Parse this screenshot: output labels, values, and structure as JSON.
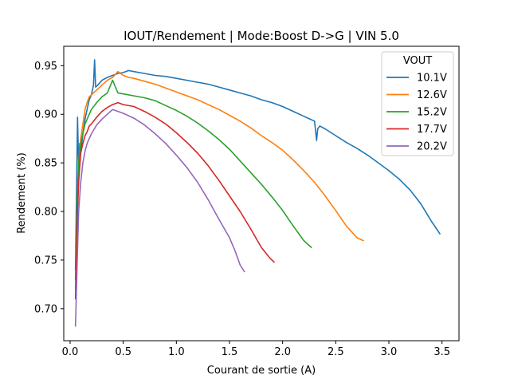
{
  "chart_data": {
    "type": "line",
    "title": "IOUT/Rendement | Mode:Boost D->G | VIN 5.0",
    "xlabel": "Courant de sortie (A)",
    "ylabel": "Rendement (%)",
    "xlim": [
      -0.06,
      3.66
    ],
    "ylim": [
      0.667,
      0.97
    ],
    "xticks": [
      0.0,
      0.5,
      1.0,
      1.5,
      2.0,
      2.5,
      3.0,
      3.5
    ],
    "xtick_labels": [
      "0.0",
      "0.5",
      "1.0",
      "1.5",
      "2.0",
      "2.5",
      "3.0",
      "3.5"
    ],
    "yticks": [
      0.7,
      0.75,
      0.8,
      0.85,
      0.9,
      0.95
    ],
    "ytick_labels": [
      "0.70",
      "0.75",
      "0.80",
      "0.85",
      "0.90",
      "0.95"
    ],
    "grid": false,
    "legend": {
      "title": "VOUT",
      "position": "top-right"
    },
    "series": [
      {
        "name": "10.1V",
        "color": "#1f77b4",
        "x": [
          0.05,
          0.07,
          0.08,
          0.09,
          0.1,
          0.12,
          0.14,
          0.16,
          0.18,
          0.2,
          0.22,
          0.23,
          0.24,
          0.26,
          0.3,
          0.35,
          0.4,
          0.45,
          0.5,
          0.55,
          0.6,
          0.7,
          0.8,
          0.9,
          1.0,
          1.1,
          1.2,
          1.3,
          1.4,
          1.5,
          1.6,
          1.7,
          1.8,
          1.9,
          2.0,
          2.1,
          2.2,
          2.3,
          2.32,
          2.33,
          2.35,
          2.4,
          2.5,
          2.6,
          2.7,
          2.8,
          2.9,
          3.0,
          3.1,
          3.2,
          3.3,
          3.4,
          3.48
        ],
        "y": [
          0.74,
          0.897,
          0.845,
          0.87,
          0.86,
          0.88,
          0.895,
          0.905,
          0.915,
          0.92,
          0.93,
          0.956,
          0.928,
          0.93,
          0.935,
          0.938,
          0.94,
          0.942,
          0.943,
          0.945,
          0.944,
          0.942,
          0.94,
          0.939,
          0.937,
          0.935,
          0.933,
          0.931,
          0.928,
          0.925,
          0.922,
          0.919,
          0.915,
          0.912,
          0.908,
          0.903,
          0.898,
          0.893,
          0.873,
          0.885,
          0.888,
          0.885,
          0.878,
          0.871,
          0.865,
          0.858,
          0.85,
          0.842,
          0.833,
          0.822,
          0.808,
          0.79,
          0.777
        ]
      },
      {
        "name": "12.6V",
        "color": "#ff7f0e",
        "x": [
          0.05,
          0.07,
          0.08,
          0.1,
          0.12,
          0.14,
          0.16,
          0.18,
          0.2,
          0.25,
          0.3,
          0.35,
          0.4,
          0.45,
          0.5,
          0.55,
          0.6,
          0.7,
          0.8,
          0.9,
          1.0,
          1.1,
          1.2,
          1.3,
          1.4,
          1.5,
          1.6,
          1.7,
          1.8,
          1.9,
          2.0,
          2.1,
          2.2,
          2.3,
          2.4,
          2.5,
          2.6,
          2.7,
          2.76
        ],
        "y": [
          0.72,
          0.82,
          0.85,
          0.875,
          0.89,
          0.905,
          0.912,
          0.918,
          0.92,
          0.925,
          0.93,
          0.935,
          0.938,
          0.944,
          0.94,
          0.938,
          0.937,
          0.934,
          0.931,
          0.927,
          0.923,
          0.919,
          0.915,
          0.91,
          0.905,
          0.899,
          0.893,
          0.886,
          0.878,
          0.871,
          0.863,
          0.853,
          0.842,
          0.83,
          0.816,
          0.801,
          0.785,
          0.773,
          0.77
        ]
      },
      {
        "name": "15.2V",
        "color": "#2ca02c",
        "x": [
          0.05,
          0.07,
          0.08,
          0.1,
          0.12,
          0.14,
          0.16,
          0.18,
          0.2,
          0.25,
          0.3,
          0.35,
          0.4,
          0.45,
          0.5,
          0.6,
          0.7,
          0.8,
          0.9,
          1.0,
          1.1,
          1.2,
          1.3,
          1.4,
          1.5,
          1.6,
          1.7,
          1.8,
          1.9,
          2.0,
          2.1,
          2.2,
          2.27
        ],
        "y": [
          0.73,
          0.82,
          0.85,
          0.87,
          0.88,
          0.89,
          0.895,
          0.9,
          0.905,
          0.912,
          0.918,
          0.922,
          0.935,
          0.922,
          0.921,
          0.919,
          0.917,
          0.914,
          0.909,
          0.904,
          0.898,
          0.891,
          0.883,
          0.874,
          0.864,
          0.852,
          0.84,
          0.828,
          0.815,
          0.801,
          0.785,
          0.77,
          0.763
        ]
      },
      {
        "name": "17.7V",
        "color": "#d62728",
        "x": [
          0.05,
          0.07,
          0.08,
          0.1,
          0.12,
          0.14,
          0.16,
          0.18,
          0.2,
          0.25,
          0.3,
          0.35,
          0.4,
          0.45,
          0.5,
          0.6,
          0.7,
          0.8,
          0.9,
          1.0,
          1.1,
          1.2,
          1.3,
          1.4,
          1.5,
          1.6,
          1.7,
          1.8,
          1.88,
          1.92
        ],
        "y": [
          0.71,
          0.8,
          0.83,
          0.86,
          0.87,
          0.878,
          0.882,
          0.888,
          0.89,
          0.897,
          0.903,
          0.907,
          0.91,
          0.912,
          0.91,
          0.908,
          0.903,
          0.897,
          0.89,
          0.881,
          0.871,
          0.86,
          0.847,
          0.832,
          0.816,
          0.8,
          0.782,
          0.763,
          0.752,
          0.748
        ]
      },
      {
        "name": "20.2V",
        "color": "#9467bd",
        "x": [
          0.05,
          0.07,
          0.08,
          0.1,
          0.12,
          0.14,
          0.16,
          0.18,
          0.2,
          0.25,
          0.3,
          0.35,
          0.4,
          0.45,
          0.5,
          0.6,
          0.7,
          0.8,
          0.9,
          1.0,
          1.1,
          1.2,
          1.3,
          1.4,
          1.5,
          1.55,
          1.6,
          1.64
        ],
        "y": [
          0.682,
          0.76,
          0.8,
          0.83,
          0.85,
          0.862,
          0.87,
          0.875,
          0.88,
          0.889,
          0.895,
          0.9,
          0.905,
          0.903,
          0.901,
          0.896,
          0.889,
          0.88,
          0.87,
          0.858,
          0.845,
          0.83,
          0.812,
          0.792,
          0.773,
          0.76,
          0.745,
          0.738
        ]
      }
    ]
  }
}
